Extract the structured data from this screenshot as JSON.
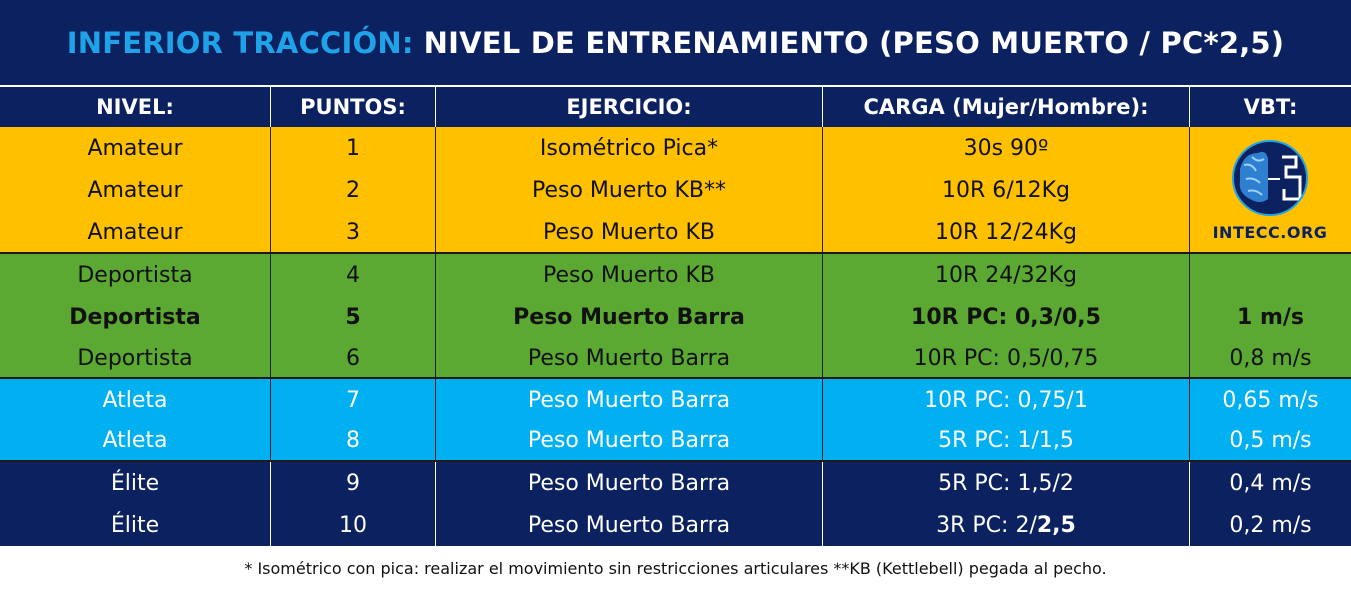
{
  "title": {
    "highlight": "INFERIOR TRACCIÓN:",
    "rest": "NIVEL DE ENTRENAMIENTO (PESO MUERTO / PC*2,5)"
  },
  "headers": [
    "NIVEL:",
    "PUNTOS:",
    "EJERCICIO:",
    "CARGA (Mujer/Hombre):",
    "VBT:"
  ],
  "logo_text": "INTECC.ORG",
  "rows": [
    {
      "nivel": "Amateur",
      "puntos": "1",
      "ejercicio": "Isométrico Pica*",
      "carga": "30s 90º",
      "vbt": ""
    },
    {
      "nivel": "Amateur",
      "puntos": "2",
      "ejercicio": "Peso Muerto KB**",
      "carga": "10R 6/12Kg",
      "vbt": ""
    },
    {
      "nivel": "Amateur",
      "puntos": "3",
      "ejercicio": "Peso Muerto KB",
      "carga": "10R 12/24Kg",
      "vbt": ""
    },
    {
      "nivel": "Deportista",
      "puntos": "4",
      "ejercicio": "Peso Muerto KB",
      "carga": "10R 24/32Kg",
      "vbt": ""
    },
    {
      "nivel": "Deportista",
      "puntos": "5",
      "ejercicio": "Peso Muerto Barra",
      "carga": "10R PC: 0,3/0,5",
      "vbt": "1 m/s"
    },
    {
      "nivel": "Deportista",
      "puntos": "6",
      "ejercicio": "Peso Muerto Barra",
      "carga": "10R PC: 0,5/0,75",
      "vbt": "0,8 m/s"
    },
    {
      "nivel": "Atleta",
      "puntos": "7",
      "ejercicio": "Peso Muerto Barra",
      "carga": "10R PC: 0,75/1",
      "vbt": "0,65 m/s"
    },
    {
      "nivel": "Atleta",
      "puntos": "8",
      "ejercicio": "Peso Muerto Barra",
      "carga": "5R PC: 1/1,5",
      "vbt": "0,5 m/s"
    },
    {
      "nivel": "Élite",
      "puntos": "9",
      "ejercicio": "Peso Muerto Barra",
      "carga": "5R PC: 1,5/2",
      "vbt": "0,4 m/s"
    },
    {
      "nivel": "Élite",
      "puntos": "10",
      "ejercicio": "Peso Muerto Barra",
      "carga_a": "3R PC: 2/",
      "carga_b": "2,5",
      "vbt": "0,2 m/s"
    }
  ],
  "footnote": "* Isométrico con pica: realizar el movimiento sin restricciones articulares  **KB (Kettlebell) pegada al pecho.",
  "colors": {
    "navy": "#0c2160",
    "title_accent": "#1fa3e8",
    "amateur": "#ffc000",
    "deportista": "#5ba832",
    "atleta": "#00b0f0",
    "elite": "#0c2160"
  }
}
